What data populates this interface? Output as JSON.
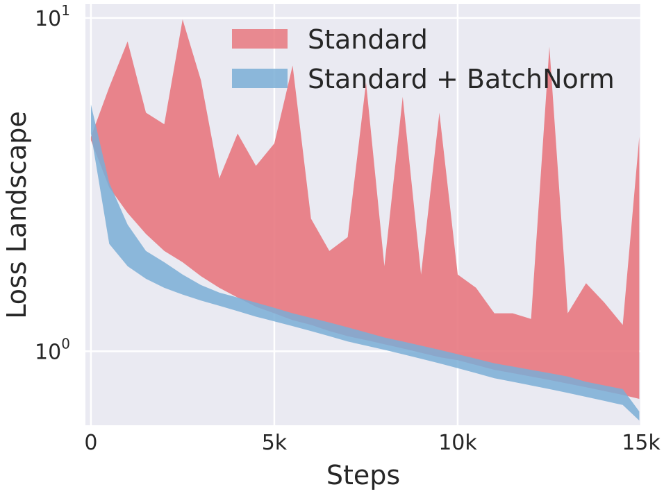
{
  "chart_data": {
    "type": "area",
    "xlabel": "Steps",
    "ylabel": "Loss Landscape",
    "xlim": [
      -150,
      15000
    ],
    "ylim": [
      0.6,
      11
    ],
    "yscale": "log",
    "grid": true,
    "legend_position": "top-right",
    "x_ticks": [
      {
        "value": 0,
        "label": "0"
      },
      {
        "value": 5000,
        "label": "5k"
      },
      {
        "value": 10000,
        "label": "10k"
      },
      {
        "value": 15000,
        "label": "15k"
      }
    ],
    "y_ticks": [
      {
        "value": 1,
        "label": "10",
        "exponent": "0"
      },
      {
        "value": 10,
        "label": "10",
        "exponent": "1"
      }
    ],
    "series": [
      {
        "name": "Standard",
        "color": "#e8787f",
        "x": [
          0,
          500,
          1000,
          1500,
          2000,
          2500,
          3000,
          3500,
          4000,
          4500,
          5000,
          5500,
          6000,
          6500,
          7000,
          7500,
          8000,
          8500,
          9000,
          9500,
          10000,
          10500,
          11000,
          11500,
          12000,
          12500,
          13000,
          13500,
          14000,
          14500,
          14950
        ],
        "lower": [
          4.3,
          3.1,
          2.6,
          2.25,
          2.0,
          1.85,
          1.68,
          1.55,
          1.45,
          1.36,
          1.3,
          1.24,
          1.2,
          1.15,
          1.11,
          1.08,
          1.05,
          1.02,
          0.99,
          0.96,
          0.94,
          0.91,
          0.88,
          0.86,
          0.84,
          0.82,
          0.8,
          0.78,
          0.76,
          0.74,
          0.72
        ],
        "upper": [
          4.4,
          6.2,
          8.5,
          5.2,
          4.8,
          9.9,
          6.5,
          3.3,
          4.5,
          3.6,
          4.2,
          7.2,
          2.5,
          2.0,
          2.2,
          6.4,
          1.8,
          5.8,
          1.7,
          5.2,
          1.7,
          1.55,
          1.3,
          1.3,
          1.25,
          8.2,
          1.3,
          1.6,
          1.4,
          1.2,
          4.4
        ]
      },
      {
        "name": "Standard + BatchNorm",
        "color": "#7aaed6",
        "x": [
          0,
          500,
          1000,
          1500,
          2000,
          2500,
          3000,
          3500,
          4000,
          4500,
          5000,
          5500,
          6000,
          6500,
          7000,
          7500,
          8000,
          8500,
          9000,
          9500,
          10000,
          10500,
          11000,
          11500,
          12000,
          12500,
          13000,
          13500,
          14000,
          14500,
          14950
        ],
        "lower": [
          4.5,
          2.1,
          1.8,
          1.65,
          1.55,
          1.48,
          1.42,
          1.37,
          1.32,
          1.27,
          1.23,
          1.19,
          1.15,
          1.11,
          1.07,
          1.04,
          1.01,
          0.98,
          0.95,
          0.92,
          0.89,
          0.86,
          0.83,
          0.81,
          0.79,
          0.77,
          0.75,
          0.73,
          0.71,
          0.69,
          0.62
        ],
        "upper": [
          5.5,
          3.2,
          2.4,
          2.0,
          1.85,
          1.7,
          1.58,
          1.5,
          1.45,
          1.4,
          1.35,
          1.3,
          1.26,
          1.22,
          1.18,
          1.14,
          1.1,
          1.07,
          1.04,
          1.01,
          0.98,
          0.95,
          0.92,
          0.9,
          0.88,
          0.86,
          0.84,
          0.81,
          0.79,
          0.77,
          0.66
        ]
      }
    ]
  }
}
